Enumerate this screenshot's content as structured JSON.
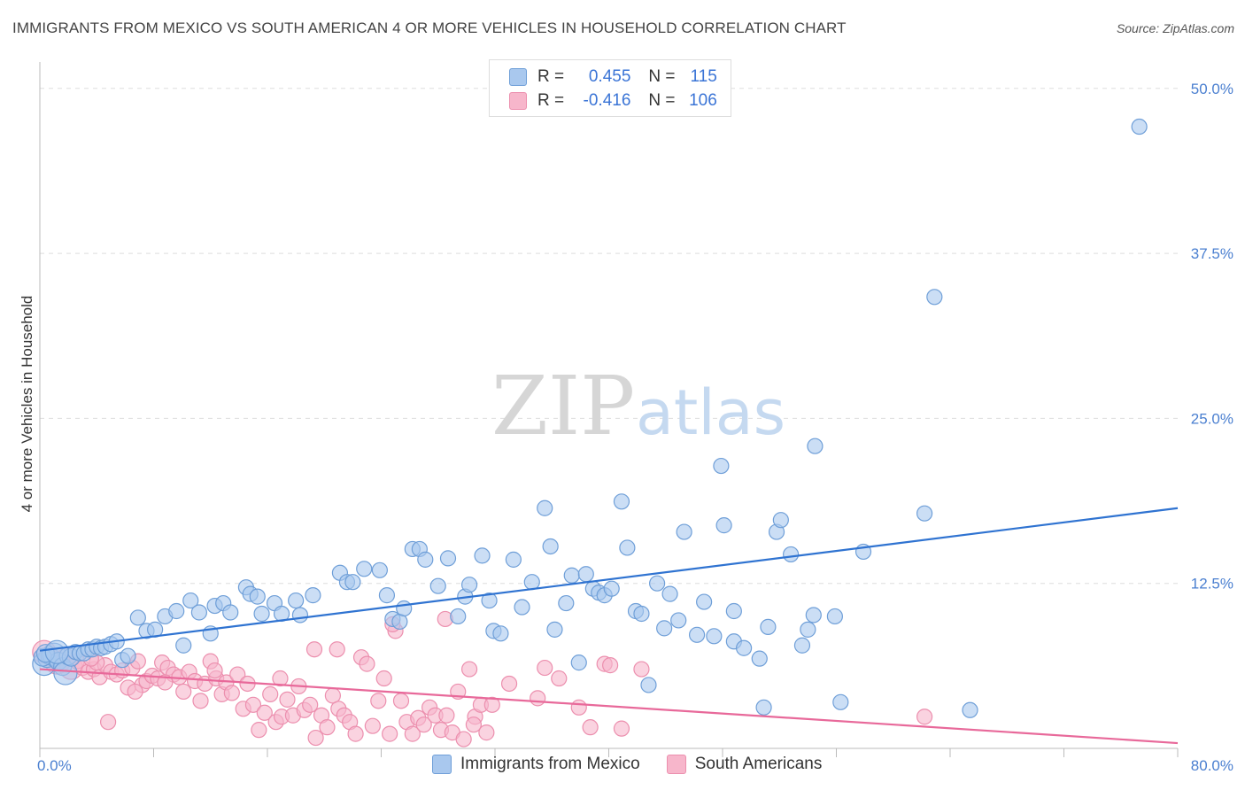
{
  "title": "IMMIGRANTS FROM MEXICO VS SOUTH AMERICAN 4 OR MORE VEHICLES IN HOUSEHOLD CORRELATION CHART",
  "source": "Source: ZipAtlas.com",
  "watermark": {
    "zip": "ZIP",
    "atlas": "atlas"
  },
  "legend": {
    "rows": [
      {
        "r_label": "R =",
        "r_value": "0.455",
        "n_label": "N =",
        "n_value": "115"
      },
      {
        "r_label": "R =",
        "r_value": "-0.416",
        "n_label": "N =",
        "n_value": "106"
      }
    ]
  },
  "colors": {
    "blue_fill": "#a9c8ee",
    "blue_stroke": "#6f9fd8",
    "blue_line": "#2f73d1",
    "pink_fill": "#f7b6cb",
    "pink_stroke": "#ec8fae",
    "pink_line": "#e8699a",
    "tick_label": "#4a7fd0",
    "grid": "#dddddd"
  },
  "chart_data": {
    "type": "scatter",
    "title": "IMMIGRANTS FROM MEXICO VS SOUTH AMERICAN 4 OR MORE VEHICLES IN HOUSEHOLD CORRELATION CHART",
    "xlabel": "",
    "ylabel": "4 or more Vehicles in Household",
    "xlim": [
      0,
      80
    ],
    "ylim": [
      0,
      52
    ],
    "x_tick_labels": [
      "0.0%",
      "80.0%"
    ],
    "y_ticks": [
      12.5,
      25.0,
      37.5,
      50.0
    ],
    "y_tick_labels": [
      "12.5%",
      "25.0%",
      "37.5%",
      "50.0%"
    ],
    "grid": true,
    "legend_position": "top-center and bottom",
    "series": [
      {
        "name": "Immigrants from Mexico",
        "color": "#a9c8ee",
        "trend": {
          "x": [
            0,
            80
          ],
          "y": [
            7.4,
            18.2
          ]
        },
        "points": [
          [
            0.3,
            6.4
          ],
          [
            0.5,
            6.8
          ],
          [
            0.7,
            7.0
          ],
          [
            1.0,
            7.1
          ],
          [
            1.3,
            6.6
          ],
          [
            1.6,
            6.2
          ],
          [
            1.8,
            5.7
          ],
          [
            2.0,
            7.0
          ],
          [
            2.2,
            6.9
          ],
          [
            2.5,
            7.3
          ],
          [
            2.8,
            7.2
          ],
          [
            3.1,
            7.2
          ],
          [
            3.4,
            7.5
          ],
          [
            3.7,
            7.5
          ],
          [
            4.0,
            7.7
          ],
          [
            4.3,
            7.6
          ],
          [
            4.6,
            7.7
          ],
          [
            5.0,
            7.9
          ],
          [
            5.4,
            8.1
          ],
          [
            5.8,
            6.7
          ],
          [
            6.2,
            7.0
          ],
          [
            6.9,
            9.9
          ],
          [
            7.5,
            8.9
          ],
          [
            8.1,
            9.0
          ],
          [
            8.8,
            10.0
          ],
          [
            9.6,
            10.4
          ],
          [
            10.1,
            7.8
          ],
          [
            10.6,
            11.2
          ],
          [
            11.2,
            10.3
          ],
          [
            12.0,
            8.7
          ],
          [
            12.3,
            10.8
          ],
          [
            12.9,
            11.0
          ],
          [
            13.4,
            10.3
          ],
          [
            14.5,
            12.2
          ],
          [
            14.8,
            11.7
          ],
          [
            15.3,
            11.5
          ],
          [
            15.6,
            10.2
          ],
          [
            16.5,
            11.0
          ],
          [
            17.0,
            10.2
          ],
          [
            18.0,
            11.2
          ],
          [
            18.3,
            10.1
          ],
          [
            19.2,
            11.6
          ],
          [
            21.1,
            13.3
          ],
          [
            21.6,
            12.6
          ],
          [
            22.0,
            12.6
          ],
          [
            22.8,
            13.6
          ],
          [
            23.9,
            13.5
          ],
          [
            24.4,
            11.6
          ],
          [
            24.8,
            9.8
          ],
          [
            25.3,
            9.6
          ],
          [
            25.6,
            10.6
          ],
          [
            26.2,
            15.1
          ],
          [
            26.7,
            15.1
          ],
          [
            27.1,
            14.3
          ],
          [
            28.0,
            12.3
          ],
          [
            28.7,
            14.4
          ],
          [
            29.4,
            10.0
          ],
          [
            29.9,
            11.5
          ],
          [
            30.2,
            12.4
          ],
          [
            31.1,
            14.6
          ],
          [
            31.6,
            11.2
          ],
          [
            31.9,
            8.9
          ],
          [
            32.4,
            8.7
          ],
          [
            33.3,
            14.3
          ],
          [
            33.9,
            10.7
          ],
          [
            34.6,
            12.6
          ],
          [
            35.5,
            18.2
          ],
          [
            35.9,
            15.3
          ],
          [
            36.2,
            9.0
          ],
          [
            37.0,
            11.0
          ],
          [
            37.4,
            13.1
          ],
          [
            37.9,
            6.5
          ],
          [
            38.4,
            13.2
          ],
          [
            38.9,
            12.1
          ],
          [
            39.3,
            11.8
          ],
          [
            39.7,
            11.6
          ],
          [
            40.2,
            12.1
          ],
          [
            40.9,
            18.7
          ],
          [
            41.3,
            15.2
          ],
          [
            41.9,
            10.4
          ],
          [
            42.3,
            10.2
          ],
          [
            42.8,
            4.8
          ],
          [
            43.4,
            12.5
          ],
          [
            43.9,
            9.1
          ],
          [
            44.3,
            11.7
          ],
          [
            44.9,
            9.7
          ],
          [
            45.3,
            16.4
          ],
          [
            46.2,
            8.6
          ],
          [
            46.7,
            11.1
          ],
          [
            47.4,
            8.5
          ],
          [
            47.9,
            21.4
          ],
          [
            48.1,
            16.9
          ],
          [
            48.8,
            8.1
          ],
          [
            48.8,
            10.4
          ],
          [
            49.5,
            7.6
          ],
          [
            50.6,
            6.8
          ],
          [
            50.9,
            3.1
          ],
          [
            51.2,
            9.2
          ],
          [
            51.8,
            16.4
          ],
          [
            52.1,
            17.3
          ],
          [
            52.8,
            14.7
          ],
          [
            53.6,
            7.8
          ],
          [
            54.0,
            9.0
          ],
          [
            54.4,
            10.1
          ],
          [
            54.5,
            22.9
          ],
          [
            55.9,
            10.0
          ],
          [
            56.3,
            3.5
          ],
          [
            57.9,
            14.9
          ],
          [
            62.9,
            34.2
          ],
          [
            62.2,
            17.8
          ],
          [
            65.4,
            2.9
          ],
          [
            77.3,
            47.1
          ],
          [
            0.2,
            6.9
          ],
          [
            0.4,
            7.2
          ],
          [
            1.2,
            7.3
          ]
        ]
      },
      {
        "name": "South Americans",
        "color": "#f7b6cb",
        "trend": {
          "x": [
            0,
            80
          ],
          "y": [
            6.0,
            0.4
          ]
        },
        "points": [
          [
            0.3,
            7.3
          ],
          [
            0.6,
            7.0
          ],
          [
            0.9,
            6.8
          ],
          [
            1.2,
            6.5
          ],
          [
            1.5,
            6.5
          ],
          [
            1.8,
            6.9
          ],
          [
            2.2,
            6.1
          ],
          [
            2.6,
            6.6
          ],
          [
            3.0,
            6.1
          ],
          [
            3.4,
            5.8
          ],
          [
            3.8,
            6.0
          ],
          [
            4.2,
            5.4
          ],
          [
            4.6,
            6.3
          ],
          [
            5.0,
            5.8
          ],
          [
            5.4,
            5.6
          ],
          [
            5.8,
            5.9
          ],
          [
            6.2,
            4.6
          ],
          [
            6.5,
            6.1
          ],
          [
            6.9,
            6.6
          ],
          [
            7.2,
            4.8
          ],
          [
            7.5,
            5.1
          ],
          [
            7.9,
            5.5
          ],
          [
            8.3,
            5.3
          ],
          [
            8.6,
            6.5
          ],
          [
            9.0,
            6.1
          ],
          [
            9.4,
            5.6
          ],
          [
            9.8,
            5.4
          ],
          [
            10.1,
            4.3
          ],
          [
            10.5,
            5.8
          ],
          [
            10.9,
            5.1
          ],
          [
            11.3,
            3.6
          ],
          [
            11.6,
            4.9
          ],
          [
            12.0,
            6.6
          ],
          [
            12.4,
            5.3
          ],
          [
            12.8,
            4.1
          ],
          [
            13.1,
            5.0
          ],
          [
            13.5,
            4.2
          ],
          [
            13.9,
            5.6
          ],
          [
            14.3,
            3.0
          ],
          [
            14.6,
            4.9
          ],
          [
            15.0,
            3.3
          ],
          [
            15.4,
            1.4
          ],
          [
            15.8,
            2.7
          ],
          [
            16.2,
            4.1
          ],
          [
            16.6,
            2.0
          ],
          [
            17.0,
            2.4
          ],
          [
            17.4,
            3.7
          ],
          [
            17.8,
            2.5
          ],
          [
            18.2,
            4.7
          ],
          [
            18.6,
            2.9
          ],
          [
            19.0,
            3.3
          ],
          [
            19.4,
            0.8
          ],
          [
            19.8,
            2.5
          ],
          [
            20.2,
            1.6
          ],
          [
            20.6,
            4.0
          ],
          [
            21.0,
            3.0
          ],
          [
            21.4,
            2.5
          ],
          [
            21.8,
            2.0
          ],
          [
            22.2,
            1.1
          ],
          [
            22.6,
            6.9
          ],
          [
            23.0,
            6.4
          ],
          [
            23.4,
            1.7
          ],
          [
            23.8,
            3.6
          ],
          [
            24.2,
            5.3
          ],
          [
            24.6,
            1.1
          ],
          [
            25.0,
            8.9
          ],
          [
            25.4,
            3.6
          ],
          [
            25.8,
            2.0
          ],
          [
            26.2,
            1.1
          ],
          [
            26.6,
            2.3
          ],
          [
            27.0,
            1.8
          ],
          [
            27.4,
            3.1
          ],
          [
            27.8,
            2.5
          ],
          [
            28.2,
            1.4
          ],
          [
            28.6,
            2.5
          ],
          [
            29.0,
            1.2
          ],
          [
            29.4,
            4.3
          ],
          [
            29.8,
            0.7
          ],
          [
            30.2,
            6.0
          ],
          [
            30.6,
            2.4
          ],
          [
            31.0,
            3.3
          ],
          [
            31.4,
            1.2
          ],
          [
            31.8,
            3.3
          ],
          [
            35.5,
            6.1
          ],
          [
            36.5,
            5.3
          ],
          [
            37.9,
            3.1
          ],
          [
            38.7,
            1.6
          ],
          [
            39.7,
            6.4
          ],
          [
            40.1,
            6.3
          ],
          [
            40.9,
            1.5
          ],
          [
            42.3,
            6.0
          ],
          [
            4.0,
            6.5
          ],
          [
            3.6,
            6.8
          ],
          [
            4.8,
            2.0
          ],
          [
            6.7,
            4.3
          ],
          [
            8.8,
            5.0
          ],
          [
            12.3,
            5.9
          ],
          [
            16.9,
            5.3
          ],
          [
            19.3,
            7.5
          ],
          [
            20.9,
            7.5
          ],
          [
            24.8,
            9.4
          ],
          [
            28.5,
            9.8
          ],
          [
            30.5,
            1.8
          ],
          [
            33.0,
            4.9
          ],
          [
            35.0,
            3.8
          ],
          [
            62.2,
            2.4
          ]
        ]
      }
    ]
  }
}
